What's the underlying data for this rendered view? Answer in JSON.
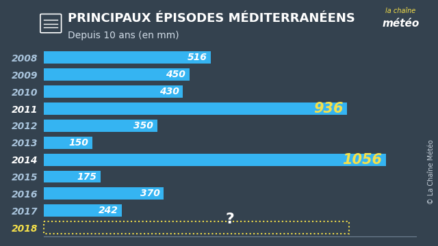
{
  "chart_data": {
    "type": "bar",
    "orientation": "horizontal",
    "title": "PRINCIPAUX ÉPISODES MÉDITERRANÉENS",
    "subtitle": "Depuis 10 ans (en mm)",
    "categories": [
      "2008",
      "2009",
      "2010",
      "2011",
      "2012",
      "2013",
      "2014",
      "2015",
      "2016",
      "2017",
      "2018"
    ],
    "values": [
      516,
      450,
      430,
      936,
      350,
      150,
      1056,
      175,
      370,
      242,
      null
    ],
    "color": "#35b4f2",
    "xlim": [
      0,
      1150
    ],
    "xticks": [],
    "data_labels": true,
    "tick_labels": "y",
    "grid": false,
    "annotations": [
      "?"
    ],
    "logo": [
      "la chaîne",
      "météo"
    ],
    "credit": "© La Chaîne Météo"
  }
}
